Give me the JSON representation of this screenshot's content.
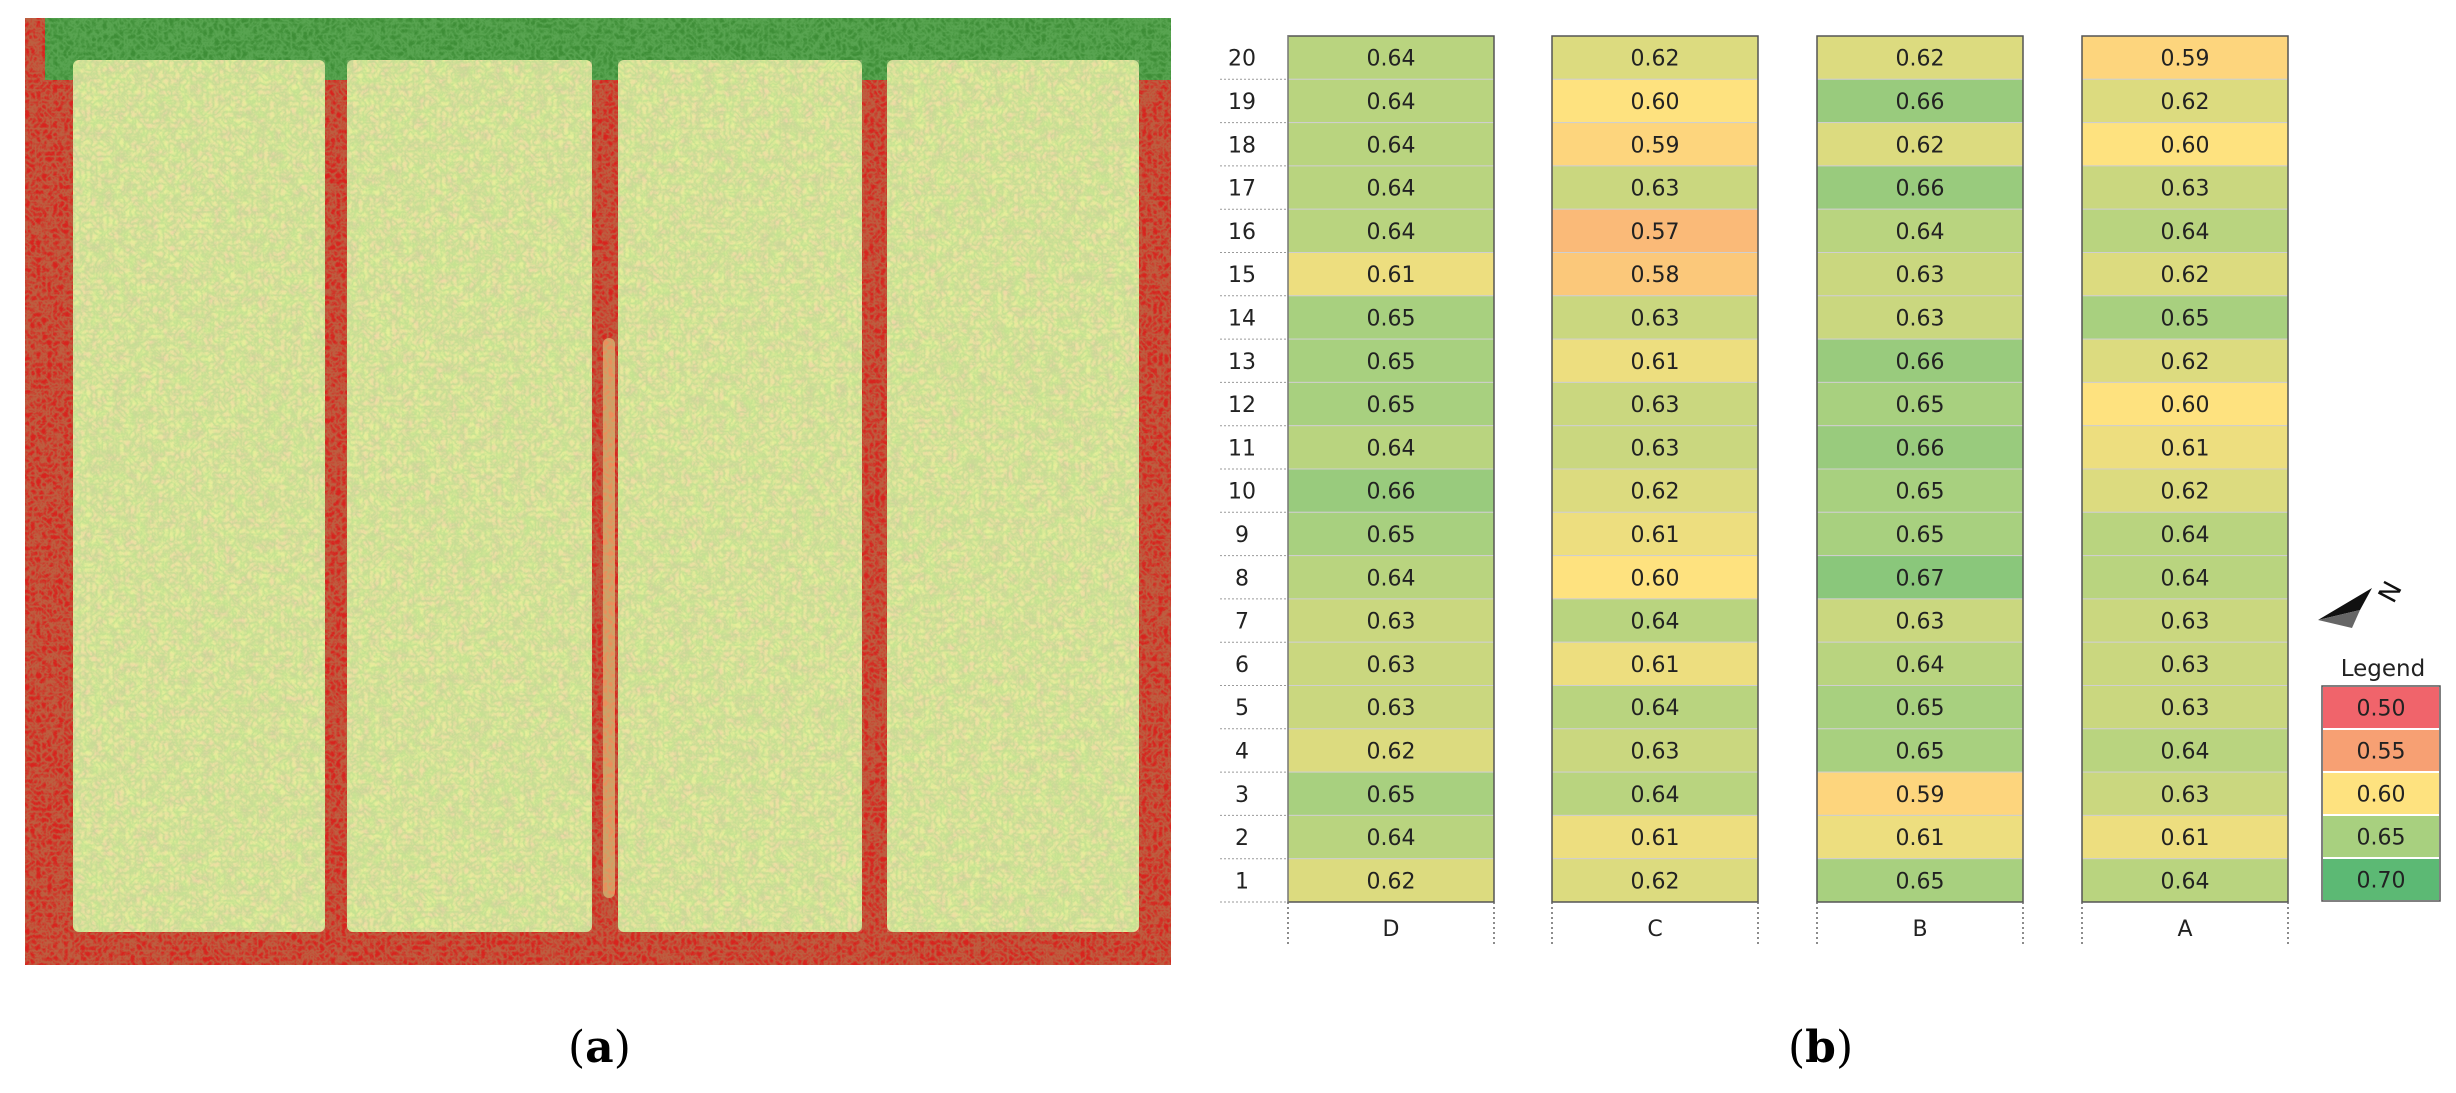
{
  "captions": {
    "a": "(a)",
    "b": "(b)"
  },
  "legend": {
    "title": "Legend",
    "entries": [
      {
        "label": "0.50",
        "color": "#F0646B"
      },
      {
        "label": "0.55",
        "color": "#F7A073"
      },
      {
        "label": "0.60",
        "color": "#FEE27F"
      },
      {
        "label": "0.65",
        "color": "#A8D07F"
      },
      {
        "label": "0.70",
        "color": "#5CB974"
      }
    ]
  },
  "colors": {
    "map_red": "#D8231E",
    "map_green": "#2E9A3A",
    "map_light": "#E6EE9A"
  },
  "chart_data": {
    "type": "heatmap",
    "columns": [
      "D",
      "C",
      "B",
      "A"
    ],
    "rows": [
      20,
      19,
      18,
      17,
      16,
      15,
      14,
      13,
      12,
      11,
      10,
      9,
      8,
      7,
      6,
      5,
      4,
      3,
      2,
      1
    ],
    "values": {
      "D": [
        "0.64",
        "0.64",
        "0.64",
        "0.64",
        "0.64",
        "0.61",
        "0.65",
        "0.65",
        "0.65",
        "0.64",
        "0.66",
        "0.65",
        "0.64",
        "0.63",
        "0.63",
        "0.63",
        "0.62",
        "0.65",
        "0.64",
        "0.62"
      ],
      "C": [
        "0.62",
        "0.60",
        "0.59",
        "0.63",
        "0.57",
        "0.58",
        "0.63",
        "0.61",
        "0.63",
        "0.63",
        "0.62",
        "0.61",
        "0.60",
        "0.64",
        "0.61",
        "0.64",
        "0.63",
        "0.64",
        "0.61",
        "0.62"
      ],
      "B": [
        "0.62",
        "0.66",
        "0.62",
        "0.66",
        "0.64",
        "0.63",
        "0.63",
        "0.66",
        "0.65",
        "0.66",
        "0.65",
        "0.65",
        "0.67",
        "0.63",
        "0.64",
        "0.65",
        "0.65",
        "0.59",
        "0.61",
        "0.65"
      ],
      "A": [
        "0.59",
        "0.62",
        "0.60",
        "0.63",
        "0.64",
        "0.62",
        "0.65",
        "0.62",
        "0.60",
        "0.61",
        "0.62",
        "0.64",
        "0.64",
        "0.63",
        "0.63",
        "0.63",
        "0.64",
        "0.63",
        "0.61",
        "0.64"
      ]
    }
  }
}
